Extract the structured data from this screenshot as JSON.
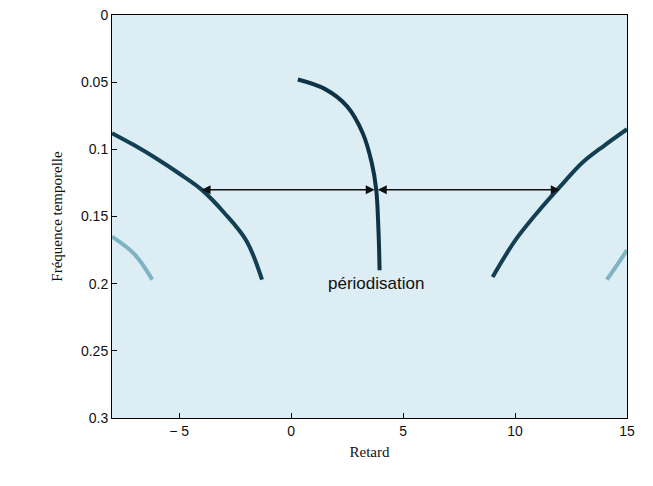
{
  "chart_data": {
    "type": "line",
    "x_label": "Retard",
    "y_label": "Fréquence temporelle",
    "xlim": [
      -8,
      15
    ],
    "xticks": [
      {
        "value": -5,
        "label": "− 5"
      },
      0,
      5,
      10,
      15
    ],
    "ylim": [
      0.3,
      0
    ],
    "yticks": [
      0,
      0.05,
      0.1,
      0.15,
      0.2,
      0.25,
      0.3
    ],
    "grid": false,
    "legend": "none",
    "series": [
      {
        "color": "#123f52",
        "x": [
          -8,
          -7,
          -6,
          -5,
          -4,
          -3,
          -2,
          -1.3
        ],
        "values": [
          0.088,
          0.097,
          0.107,
          0.118,
          0.13,
          0.147,
          0.168,
          0.197
        ]
      },
      {
        "color": "#0f3346",
        "x": [
          0.3,
          1.5,
          2.5,
          3.2,
          3.6,
          3.8,
          3.9,
          3.95
        ],
        "values": [
          0.048,
          0.055,
          0.068,
          0.088,
          0.11,
          0.13,
          0.16,
          0.19
        ]
      },
      {
        "color": "#123f52",
        "x": [
          15,
          14,
          13,
          12,
          11,
          10,
          9
        ],
        "values": [
          0.085,
          0.097,
          0.11,
          0.128,
          0.147,
          0.168,
          0.195
        ]
      },
      {
        "color": "#7fb3c4",
        "x": [
          -8,
          -7,
          -6.2
        ],
        "values": [
          0.165,
          0.178,
          0.197
        ]
      },
      {
        "color": "#7fb3c4",
        "x": [
          14.1,
          14.6,
          15
        ],
        "values": [
          0.197,
          0.185,
          0.175
        ]
      }
    ],
    "annotations": [
      {
        "text": "périodisation",
        "x": 3.8,
        "y": 0.2
      }
    ],
    "arrows": [
      {
        "from": [
          3.8,
          0.13
        ],
        "to": [
          -4,
          0.13
        ]
      },
      {
        "from": [
          3.8,
          0.13
        ],
        "to": [
          12,
          0.13
        ]
      }
    ]
  }
}
